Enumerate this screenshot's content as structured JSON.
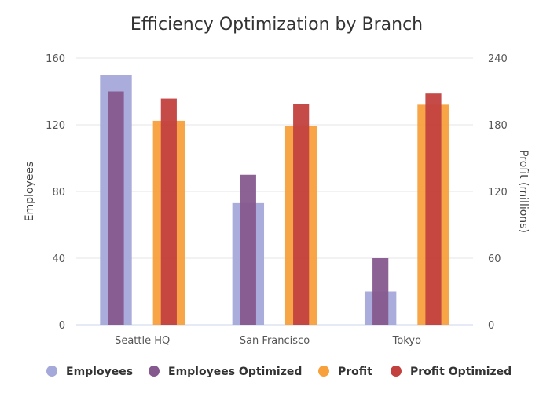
{
  "chart_data": {
    "type": "bar",
    "title": "Efficiency Optimization by Branch",
    "categories": [
      "Seattle HQ",
      "San Francisco",
      "Tokyo"
    ],
    "y_left": {
      "label": "Employees",
      "ticks": [
        0,
        40,
        80,
        120,
        160
      ],
      "range": [
        0,
        160
      ]
    },
    "y_right": {
      "label": "Profit (millions)",
      "ticks": [
        0,
        60,
        120,
        180,
        240
      ],
      "range": [
        0,
        240
      ]
    },
    "series": [
      {
        "name": "Employees",
        "axis": "left",
        "values": [
          150,
          73,
          20
        ],
        "color": "#a5a9d9",
        "group": "employees",
        "layer": "back"
      },
      {
        "name": "Employees Optimized",
        "axis": "left",
        "values": [
          140,
          90,
          40
        ],
        "color": "#86598e",
        "group": "employees",
        "layer": "front"
      },
      {
        "name": "Profit",
        "axis": "right",
        "values": [
          183.6,
          178.8,
          198.1
        ],
        "color": "#f7a03c",
        "group": "profit",
        "layer": "back"
      },
      {
        "name": "Profit Optimized",
        "axis": "right",
        "values": [
          203.6,
          198.7,
          208.1
        ],
        "color": "#c2413f",
        "group": "profit",
        "layer": "front"
      }
    ],
    "legend_position": "bottom"
  }
}
